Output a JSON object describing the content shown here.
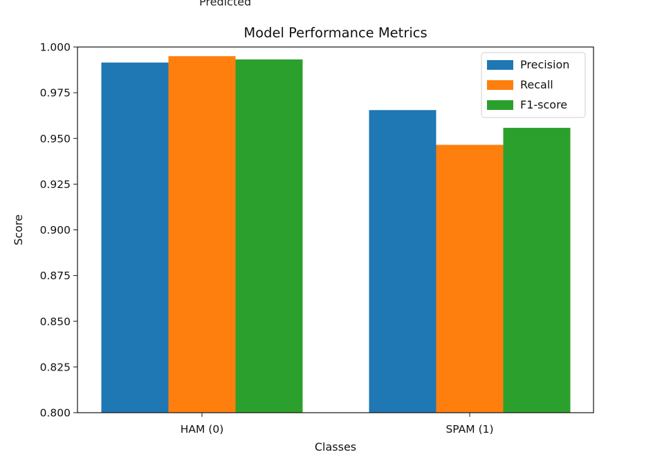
{
  "top_cut_text": "Predicted",
  "chart_data": {
    "type": "bar",
    "title": "Model Performance Metrics",
    "xlabel": "Classes",
    "ylabel": "Score",
    "categories": [
      "HAM (0)",
      "SPAM (1)"
    ],
    "series": [
      {
        "name": "Precision",
        "values": [
          0.9915,
          0.9655
        ]
      },
      {
        "name": "Recall",
        "values": [
          0.995,
          0.9465
        ]
      },
      {
        "name": "F1-score",
        "values": [
          0.9932,
          0.9558
        ]
      }
    ],
    "ylim": [
      0.8,
      1.0
    ],
    "yticks": [
      "0.800",
      "0.825",
      "0.850",
      "0.875",
      "0.900",
      "0.925",
      "0.950",
      "0.975",
      "1.000"
    ],
    "legend_position": "top-right",
    "grid": false
  },
  "colors": {
    "Precision": "#1f77b4",
    "Recall": "#ff7f0e",
    "F1-score": "#2ca02c"
  }
}
